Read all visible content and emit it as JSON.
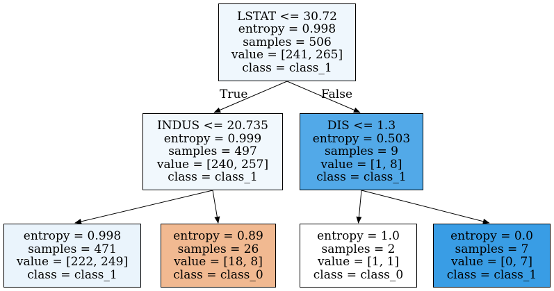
{
  "tree": {
    "nodes": [
      {
        "id": "root",
        "lines": [
          "LSTAT <= 30.72",
          "entropy = 0.998",
          "samples = 506",
          "value = [241, 265]",
          "class = class_1"
        ],
        "fill": "#eff7fd"
      },
      {
        "id": "n1",
        "lines": [
          "INDUS <= 20.735",
          "entropy = 0.999",
          "samples = 497",
          "value = [240, 257]",
          "class = class_1"
        ],
        "fill": "#f1f8fd"
      },
      {
        "id": "n2",
        "lines": [
          "DIS <= 1.3",
          "entropy = 0.503",
          "samples = 9",
          "value = [1, 8]",
          "class = class_1"
        ],
        "fill": "#52a9e8"
      },
      {
        "id": "n3",
        "lines": [
          "entropy = 0.998",
          "samples = 471",
          "value = [222, 249]",
          "class = class_1"
        ],
        "fill": "#eaf4fc"
      },
      {
        "id": "n4",
        "lines": [
          "entropy = 0.89",
          "samples = 26",
          "value = [18, 8]",
          "class = class_0"
        ],
        "fill": "#f1b991"
      },
      {
        "id": "n5",
        "lines": [
          "entropy = 1.0",
          "samples = 2",
          "value = [1, 1]",
          "class = class_0"
        ],
        "fill": "#ffffff"
      },
      {
        "id": "n6",
        "lines": [
          "entropy = 0.0",
          "samples = 7",
          "value = [0, 7]",
          "class = class_1"
        ],
        "fill": "#399de5"
      }
    ],
    "edges": [
      {
        "from": "root",
        "to": "n1",
        "label": "True"
      },
      {
        "from": "root",
        "to": "n2",
        "label": "False"
      },
      {
        "from": "n1",
        "to": "n3",
        "label": ""
      },
      {
        "from": "n1",
        "to": "n4",
        "label": ""
      },
      {
        "from": "n2",
        "to": "n5",
        "label": ""
      },
      {
        "from": "n2",
        "to": "n6",
        "label": ""
      }
    ]
  }
}
